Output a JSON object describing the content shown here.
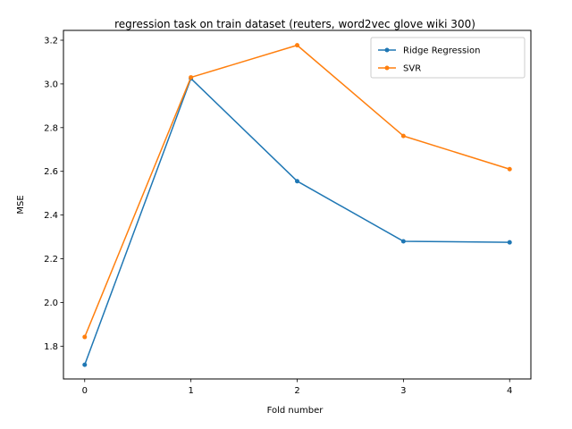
{
  "chart_data": {
    "type": "line",
    "title": "regression task on train dataset (reuters, word2vec glove wiki 300)",
    "xlabel": "Fold number",
    "ylabel": "MSE",
    "x": [
      0,
      1,
      2,
      3,
      4
    ],
    "xticks": [
      "0",
      "1",
      "2",
      "3",
      "4"
    ],
    "yticks": [
      "1.8",
      "2.0",
      "2.2",
      "2.4",
      "2.6",
      "2.8",
      "3.0",
      "3.2"
    ],
    "xlim": [
      -0.2,
      4.2
    ],
    "ylim": [
      1.65,
      3.245
    ],
    "grid": false,
    "legend_position": "top-right",
    "series": [
      {
        "name": "Ridge Regression",
        "color": "#1f77b4",
        "marker": "dot",
        "values": [
          1.715,
          3.025,
          2.555,
          2.28,
          2.275
        ]
      },
      {
        "name": "SVR",
        "color": "#ff7f0e",
        "marker": "dot",
        "values": [
          1.842,
          3.03,
          3.177,
          2.762,
          2.61
        ]
      }
    ]
  }
}
